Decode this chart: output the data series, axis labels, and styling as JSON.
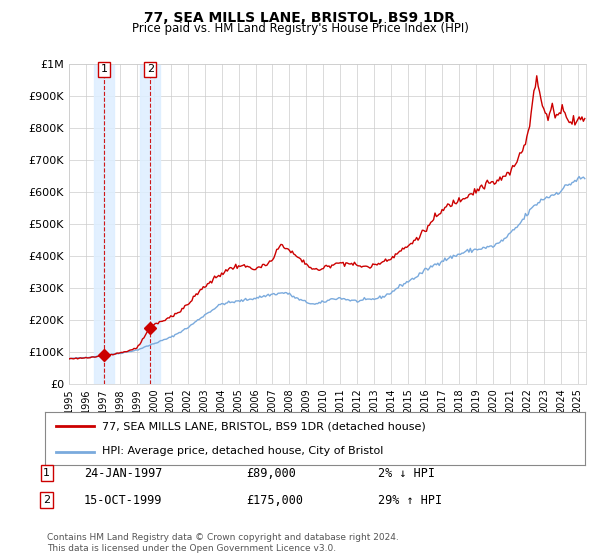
{
  "title": "77, SEA MILLS LANE, BRISTOL, BS9 1DR",
  "subtitle": "Price paid vs. HM Land Registry's House Price Index (HPI)",
  "ylim": [
    0,
    1000000
  ],
  "yticks": [
    0,
    100000,
    200000,
    300000,
    400000,
    500000,
    600000,
    700000,
    800000,
    900000,
    1000000
  ],
  "ytick_labels": [
    "£0",
    "£100K",
    "£200K",
    "£300K",
    "£400K",
    "£500K",
    "£600K",
    "£700K",
    "£800K",
    "£900K",
    "£1M"
  ],
  "xlim_start": 1995.0,
  "xlim_end": 2025.5,
  "purchase_dates": [
    1997.07,
    1999.79
  ],
  "purchase_prices": [
    89000,
    175000
  ],
  "purchase_labels": [
    "1",
    "2"
  ],
  "legend_line1": "77, SEA MILLS LANE, BRISTOL, BS9 1DR (detached house)",
  "legend_line2": "HPI: Average price, detached house, City of Bristol",
  "table_rows": [
    [
      "1",
      "24-JAN-1997",
      "£89,000",
      "2% ↓ HPI"
    ],
    [
      "2",
      "15-OCT-1999",
      "£175,000",
      "29% ↑ HPI"
    ]
  ],
  "footnote": "Contains HM Land Registry data © Crown copyright and database right 2024.\nThis data is licensed under the Open Government Licence v3.0.",
  "line_color_red": "#cc0000",
  "line_color_blue": "#7aaadd",
  "shade_color": "#ddeeff",
  "grid_color": "#cccccc",
  "background_color": "#ffffff"
}
